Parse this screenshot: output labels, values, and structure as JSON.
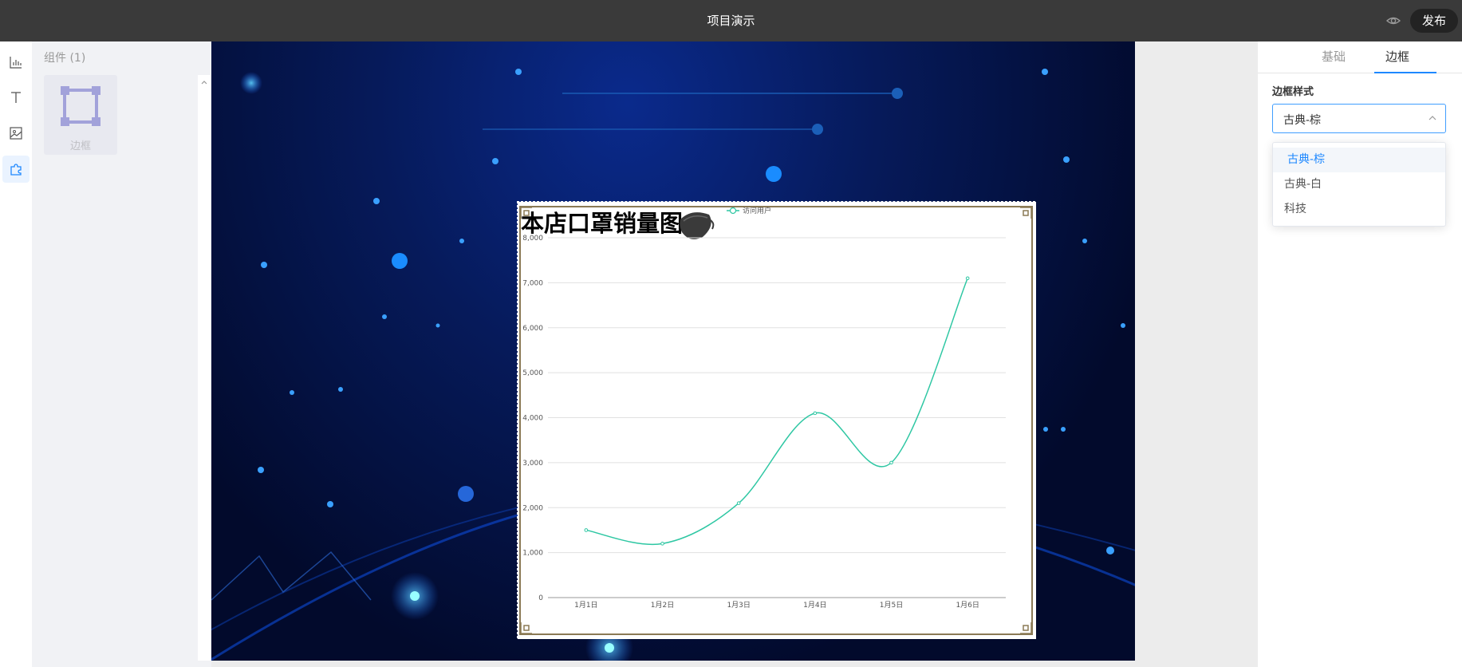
{
  "header": {
    "title": "项目演示",
    "publish_label": "发布",
    "preview_icon": "eye-icon"
  },
  "tool_rail": {
    "items": [
      "chart-icon",
      "text-icon",
      "image-icon",
      "puzzle-icon"
    ],
    "active_item": "puzzle-icon"
  },
  "components_panel": {
    "heading": "组件 (1)",
    "items": [
      {
        "label": "边框",
        "icon": "frame-icon"
      }
    ]
  },
  "properties_panel": {
    "tabs": [
      {
        "label": "基础"
      },
      {
        "label": "边框"
      }
    ],
    "active_tab": "边框",
    "border_style": {
      "label": "边框样式",
      "value": "古典-棕",
      "options": [
        "古典-棕",
        "古典-白",
        "科技"
      ]
    }
  },
  "colors": {
    "accent": "#1e88ff",
    "line": "#2ec7a3",
    "border_brown": "#8b7a55"
  },
  "chart_data": {
    "type": "line",
    "title": "本店口罩销量图",
    "legend": [
      "访问用户"
    ],
    "legend_placement": "top-center",
    "categories": [
      "1月1日",
      "1月2日",
      "1月3日",
      "1月4日",
      "1月5日",
      "1月6日"
    ],
    "series": [
      {
        "name": "访问用户",
        "values": [
          1500,
          1200,
          2100,
          4100,
          3000,
          7100
        ],
        "smooth": true
      }
    ],
    "yticks": [
      "0",
      "1,000",
      "2,000",
      "3,000",
      "4,000",
      "5,000",
      "6,000",
      "7,000",
      "8,000"
    ],
    "ylim": [
      0,
      8000
    ],
    "grid": true
  }
}
